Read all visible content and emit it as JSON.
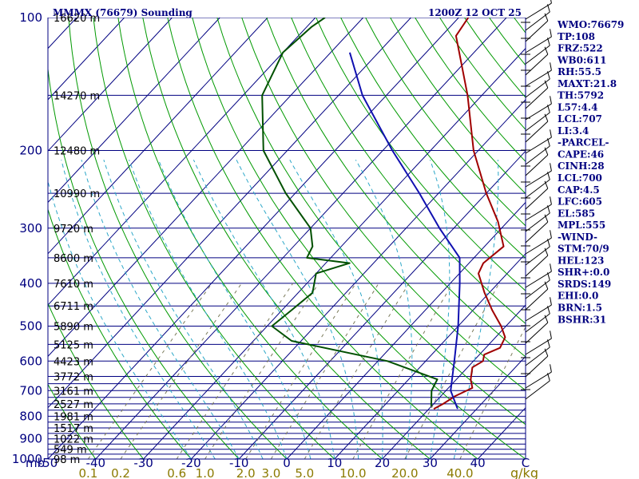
{
  "chart_data": {
    "type": "line",
    "title": "MMMX (76679) Sounding",
    "datetime": "1200Z 12 OCT 25",
    "pressure_unit_label": "mb",
    "mixing_ratio_unit_label": "g/kg",
    "pressure_axis": {
      "range_mb": [
        1000,
        100
      ],
      "scale": "log",
      "ticks": [
        "100",
        "200",
        "300",
        "400",
        "500",
        "600",
        "700",
        "800",
        "900",
        "1000"
      ]
    },
    "temperature_axis": {
      "range_c": [
        -50,
        50
      ],
      "skewed": true,
      "ticks": [
        "-50",
        "-40",
        "-30",
        "-20",
        "-10",
        "0",
        "10",
        "20",
        "30",
        "40",
        "C"
      ]
    },
    "height_labels": [
      "16620 m",
      "14270 m",
      "12480 m",
      "10990 m",
      "9720 m",
      "8600 m",
      "7610 m",
      "6711 m",
      "5890 m",
      "5125 m",
      "4423 m",
      "3772 m",
      "3161 m",
      "2527 m",
      "1981 m",
      "1517 m",
      "1022 m",
      "549 m",
      "98 m"
    ],
    "mixing_ratio_labels": [
      "0.1",
      "0.2",
      "0.6",
      "1.0",
      "2.0",
      "3.0",
      "5.0",
      "10.0",
      "20.0",
      "40.0"
    ],
    "series": [
      {
        "values": [
          [
            770,
            21
          ],
          [
            750,
            22
          ],
          [
            720,
            23
          ],
          [
            690,
            25
          ],
          [
            660,
            23
          ],
          [
            620,
            21
          ],
          [
            600,
            22
          ],
          [
            580,
            21
          ],
          [
            560,
            23
          ],
          [
            530,
            22
          ],
          [
            500,
            19
          ],
          [
            460,
            14
          ],
          [
            420,
            9
          ],
          [
            380,
            4
          ],
          [
            360,
            3
          ],
          [
            330,
            4
          ],
          [
            290,
            -2
          ],
          [
            250,
            -10
          ],
          [
            200,
            -21
          ],
          [
            150,
            -33
          ],
          [
            110,
            -47
          ],
          [
            100,
            -48
          ]
        ]
      },
      {
        "values": [
          [
            760,
            20
          ],
          [
            700,
            17
          ],
          [
            660,
            16
          ],
          [
            600,
            2
          ],
          [
            540,
            -22
          ],
          [
            500,
            -29
          ],
          [
            460,
            -28
          ],
          [
            420,
            -27
          ],
          [
            380,
            -30
          ],
          [
            360,
            -25
          ],
          [
            350,
            -35
          ],
          [
            330,
            -36
          ],
          [
            300,
            -40
          ],
          [
            250,
            -52
          ],
          [
            200,
            -65
          ],
          [
            150,
            -76
          ],
          [
            120,
            -80
          ],
          [
            105,
            -79
          ],
          [
            100,
            -78
          ]
        ]
      },
      {
        "values": [
          [
            770,
            26
          ],
          [
            700,
            21
          ],
          [
            600,
            16
          ],
          [
            500,
            10
          ],
          [
            400,
            2
          ],
          [
            350,
            -3
          ],
          [
            300,
            -13
          ],
          [
            250,
            -24
          ],
          [
            200,
            -38
          ],
          [
            150,
            -55
          ],
          [
            120,
            -66
          ]
        ]
      }
    ],
    "indices": [
      "WMO:76679",
      "TP:108",
      "FRZ:522",
      "WB0:611",
      "RH:55.5",
      "MAXT:21.8",
      "TH:5792",
      "L57:4.4",
      "LCL:707",
      "LI:3.4",
      "-PARCEL-",
      "CAPE:46",
      "CINH:28",
      "LCL:700",
      "CAP:4.5",
      "LFC:605",
      "EL:585",
      "MPL:555",
      "-WIND-",
      "STM:70/9",
      "HEL:123",
      "SHR+:0.0",
      "SRDS:149",
      "EHI:0.0",
      "BRN:1.5",
      "BSHR:31"
    ],
    "colors": {
      "navy": "#000080",
      "isotherm": "#000080",
      "dry_adiabat": "#009900",
      "moist_adiabat": "#2ca7c8",
      "mixing_ratio": "#7a7a5a",
      "temperature": "#a00000",
      "dewpoint": "#005000",
      "parcel": "#1010b0",
      "mixing_label": "#8b7a00",
      "wind_barb": "#000000"
    },
    "grid": true
  }
}
